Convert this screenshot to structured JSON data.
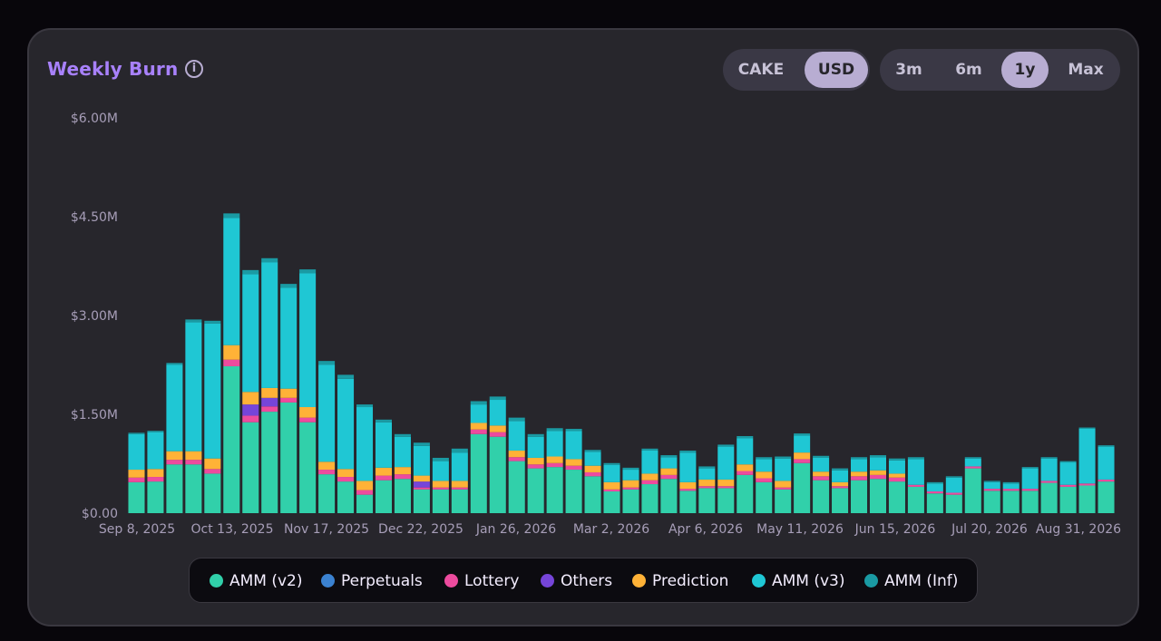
{
  "header": {
    "title": "Weekly Burn",
    "info_icon": "info-icon"
  },
  "currency_toggle": {
    "options": [
      "CAKE",
      "USD"
    ],
    "selected": "USD"
  },
  "range_toggle": {
    "options": [
      "3m",
      "6m",
      "1y",
      "Max"
    ],
    "selected": "1y"
  },
  "legend": [
    {
      "label": "AMM (v2)",
      "color": "#31d0aa"
    },
    {
      "label": "Perpetuals",
      "color": "#3b82d1"
    },
    {
      "label": "Lottery",
      "color": "#ed4b9e"
    },
    {
      "label": "Others",
      "color": "#7645d9"
    },
    {
      "label": "Prediction",
      "color": "#ffb237"
    },
    {
      "label": "AMM (v3)",
      "color": "#1fc7d4"
    },
    {
      "label": "AMM (Inf)",
      "color": "#1a9aa3"
    }
  ],
  "chart_data": {
    "type": "bar",
    "stacked": true,
    "ylim": [
      0,
      6.0
    ],
    "y_unit": "M USD",
    "y_ticks": [
      "$0.00",
      "$1.50M",
      "$3.00M",
      "$4.50M",
      "$6.00M"
    ],
    "x_tick_labels": [
      "Sep 8, 2025",
      "Oct 13, 2025",
      "Nov 17, 2025",
      "Dec 22, 2025",
      "Jan 26, 2026",
      "Mar 2, 2026",
      "Apr 6, 2026",
      "May 11, 2026",
      "Jun 15, 2026",
      "Jul 20, 2026",
      "Aug 31, 2026"
    ],
    "grid": false,
    "series": [
      {
        "name": "AMM (v2)",
        "color": "#31d0aa",
        "values": [
          0.47,
          0.48,
          0.74,
          0.74,
          0.6,
          2.23,
          1.38,
          1.54,
          1.68,
          1.38,
          0.59,
          0.48,
          0.28,
          0.5,
          0.52,
          0.36,
          0.36,
          0.36,
          1.2,
          1.16,
          0.79,
          0.68,
          0.7,
          0.66,
          0.56,
          0.33,
          0.36,
          0.44,
          0.52,
          0.34,
          0.38,
          0.38,
          0.58,
          0.47,
          0.36,
          0.76,
          0.5,
          0.38,
          0.5,
          0.52,
          0.48,
          0.4,
          0.3,
          0.28,
          0.68,
          0.34,
          0.34,
          0.34,
          0.46,
          0.4,
          0.42,
          0.48
        ]
      },
      {
        "name": "Perpetuals",
        "color": "#3b82d1",
        "values": [
          0,
          0,
          0,
          0,
          0,
          0,
          0,
          0,
          0,
          0,
          0,
          0,
          0,
          0,
          0,
          0,
          0,
          0,
          0,
          0,
          0,
          0,
          0,
          0,
          0,
          0,
          0,
          0,
          0,
          0,
          0,
          0,
          0,
          0,
          0,
          0,
          0,
          0,
          0,
          0,
          0,
          0,
          0,
          0,
          0,
          0,
          0,
          0,
          0,
          0,
          0,
          0
        ]
      },
      {
        "name": "Lottery",
        "color": "#ed4b9e",
        "values": [
          0.07,
          0.07,
          0.07,
          0.07,
          0.07,
          0.1,
          0.1,
          0.08,
          0.07,
          0.07,
          0.07,
          0.07,
          0.07,
          0.07,
          0.07,
          0.03,
          0.03,
          0.03,
          0.07,
          0.07,
          0.06,
          0.06,
          0.06,
          0.06,
          0.06,
          0.03,
          0.03,
          0.06,
          0.06,
          0.03,
          0.03,
          0.03,
          0.06,
          0.06,
          0.03,
          0.06,
          0.06,
          0.03,
          0.06,
          0.06,
          0.06,
          0.03,
          0.03,
          0.03,
          0.03,
          0.03,
          0.03,
          0.03,
          0.03,
          0.03,
          0.03,
          0.03
        ]
      },
      {
        "name": "Others",
        "color": "#7645d9",
        "values": [
          0,
          0,
          0,
          0,
          0,
          0,
          0.17,
          0.13,
          0,
          0,
          0,
          0,
          0,
          0,
          0,
          0.09,
          0,
          0,
          0,
          0,
          0,
          0,
          0,
          0,
          0,
          0,
          0,
          0,
          0,
          0,
          0,
          0,
          0,
          0,
          0,
          0,
          0,
          0,
          0,
          0,
          0,
          0,
          0,
          0,
          0,
          0,
          0,
          0,
          0,
          0,
          0,
          0
        ]
      },
      {
        "name": "Prediction",
        "color": "#ffb237",
        "values": [
          0.12,
          0.12,
          0.13,
          0.13,
          0.16,
          0.22,
          0.19,
          0.15,
          0.14,
          0.16,
          0.12,
          0.12,
          0.14,
          0.12,
          0.11,
          0.09,
          0.1,
          0.1,
          0.1,
          0.1,
          0.1,
          0.1,
          0.1,
          0.1,
          0.1,
          0.11,
          0.11,
          0.1,
          0.1,
          0.1,
          0.1,
          0.1,
          0.1,
          0.1,
          0.1,
          0.1,
          0.07,
          0.06,
          0.07,
          0.07,
          0.06,
          0,
          0,
          0,
          0,
          0,
          0,
          0,
          0,
          0,
          0,
          0
        ]
      },
      {
        "name": "AMM (v3)",
        "color": "#1fc7d4",
        "values": [
          0.54,
          0.56,
          1.31,
          1.96,
          2.05,
          1.93,
          1.79,
          1.91,
          1.53,
          2.03,
          1.47,
          1.37,
          1.12,
          0.69,
          0.46,
          0.45,
          0.3,
          0.43,
          0.28,
          0.39,
          0.45,
          0.32,
          0.39,
          0.43,
          0.21,
          0.26,
          0.16,
          0.35,
          0.17,
          0.45,
          0.17,
          0.5,
          0.4,
          0.19,
          0.34,
          0.26,
          0.21,
          0.18,
          0.19,
          0.2,
          0.2,
          0.39,
          0.12,
          0.23,
          0.12,
          0.1,
          0.08,
          0.31,
          0.34,
          0.34,
          0.83,
          0.5
        ]
      },
      {
        "name": "AMM (Inf)",
        "color": "#1a9aa3",
        "values": [
          0.02,
          0.02,
          0.03,
          0.04,
          0.04,
          0.07,
          0.06,
          0.06,
          0.06,
          0.06,
          0.06,
          0.06,
          0.04,
          0.04,
          0.04,
          0.05,
          0.05,
          0.06,
          0.05,
          0.05,
          0.05,
          0.04,
          0.04,
          0.03,
          0.03,
          0.03,
          0.03,
          0.03,
          0.03,
          0.03,
          0.03,
          0.03,
          0.03,
          0.03,
          0.03,
          0.03,
          0.03,
          0.03,
          0.03,
          0.03,
          0.03,
          0.03,
          0.02,
          0.02,
          0.02,
          0.02,
          0.02,
          0.02,
          0.02,
          0.02,
          0.02,
          0.02
        ]
      }
    ]
  }
}
